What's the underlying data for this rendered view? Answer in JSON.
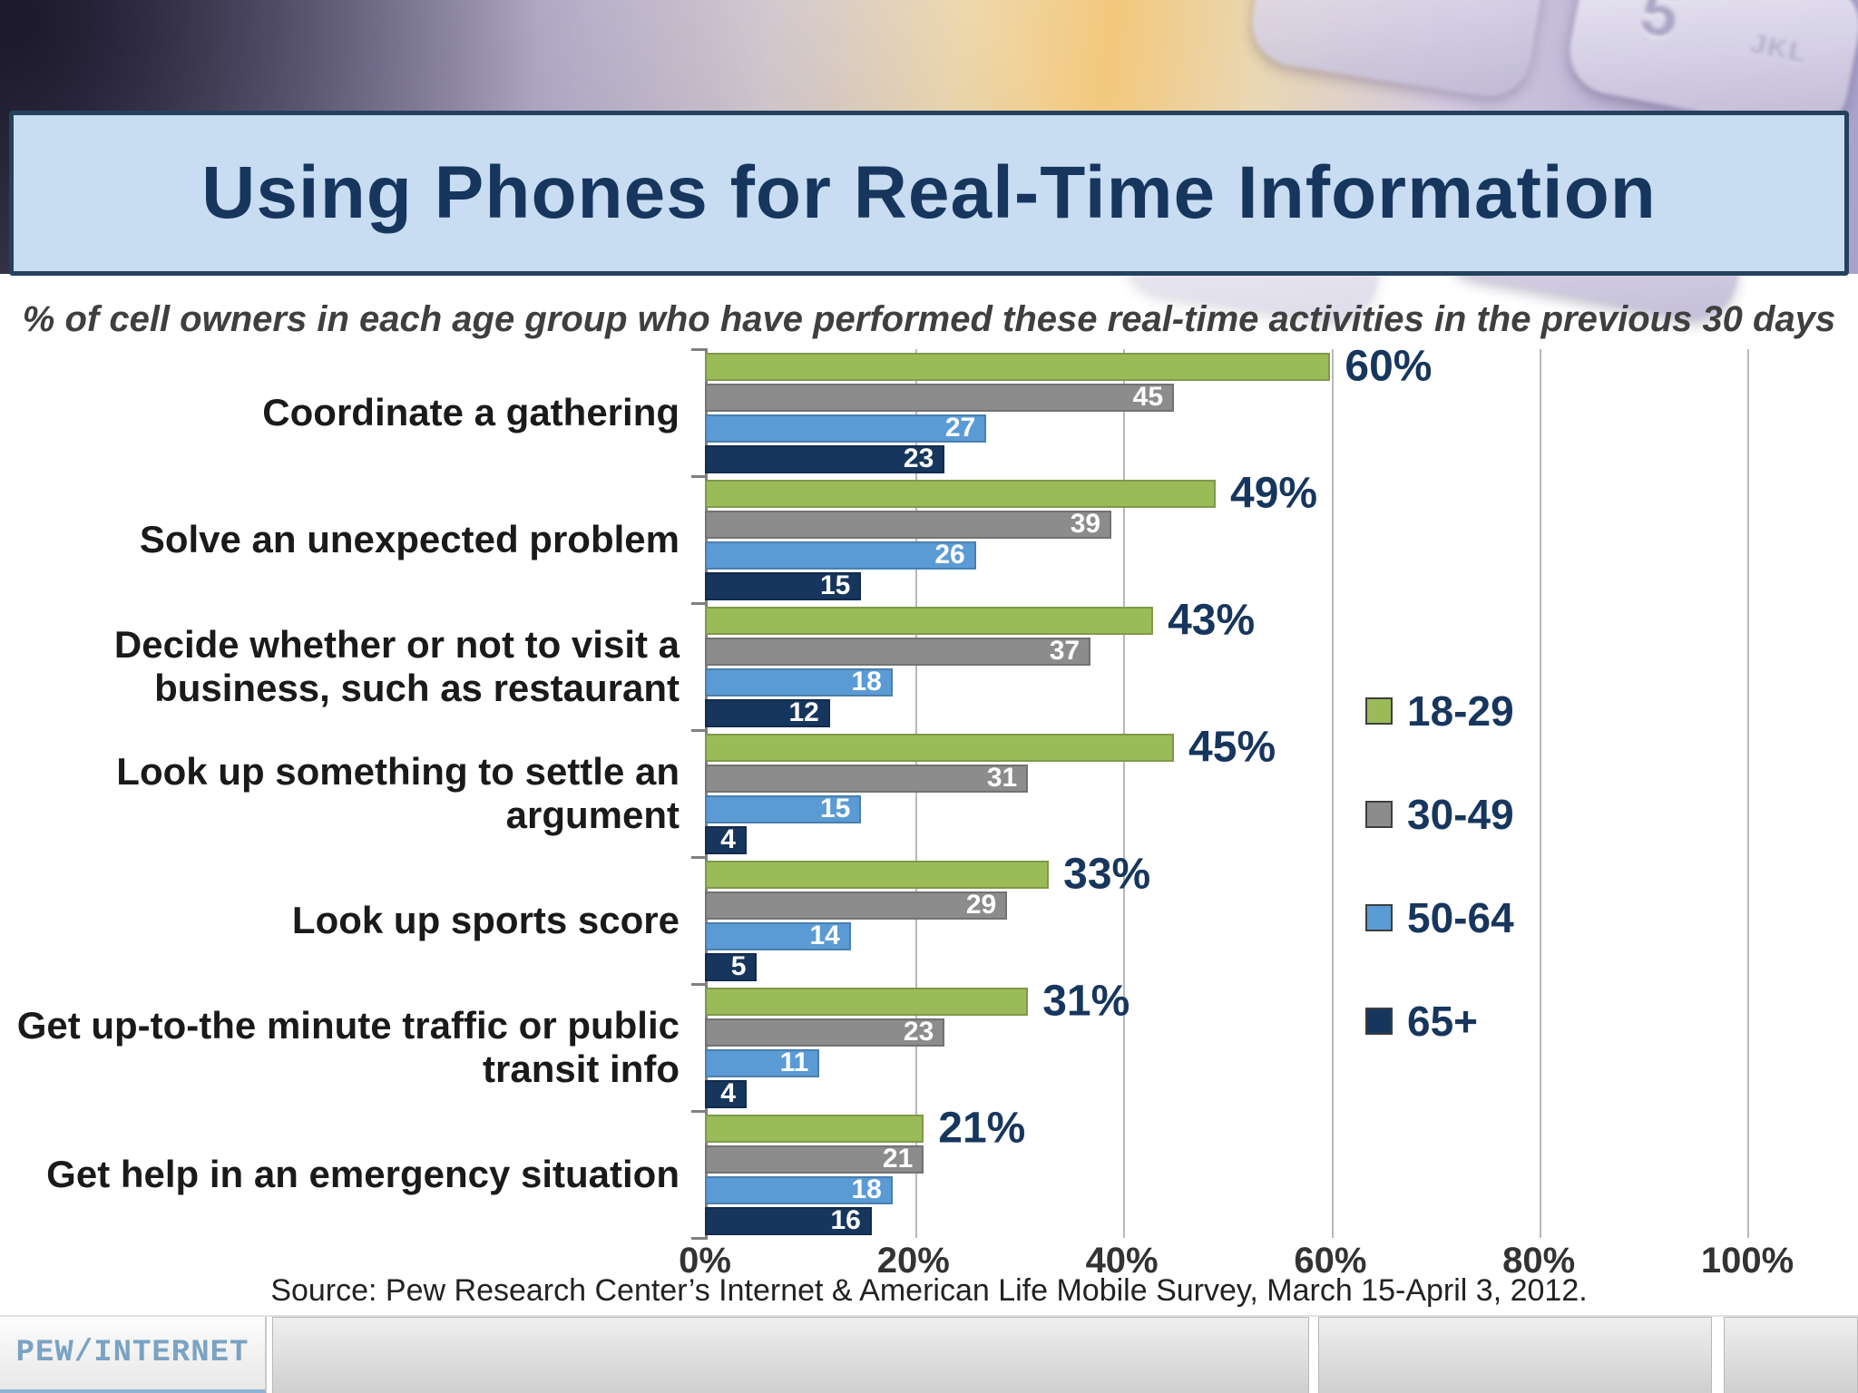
{
  "title": "Using Phones for Real-Time Information",
  "subtitle": "% of cell owners in each age group who have performed these real-time activities in the previous 30 days",
  "source": "Source: Pew Research Center’s Internet & American Life Mobile Survey, March 15-April 3, 2012.",
  "logo": {
    "text": "PEW/INTERNET"
  },
  "background": {
    "key_number": "5",
    "key_letters": "JKL"
  },
  "colors": {
    "title_text": "#17365D",
    "title_bar_bg": "#C8DCF2",
    "title_bar_border": "#24425F",
    "series_green": "#9BBB59",
    "series_gray": "#8C8C8C",
    "series_blue": "#5B9BD5",
    "series_navy": "#17365D"
  },
  "chart_data": {
    "type": "bar",
    "orientation": "horizontal",
    "title": "Using Phones for Real-Time Information",
    "subtitle": "% of cell owners in each age group who have performed these real-time activities in the previous 30 days",
    "categories": [
      "Coordinate a gathering",
      "Solve an unexpected problem",
      "Decide whether or not to visit a business, such as restaurant",
      "Look up something to settle an argument",
      "Look up sports score",
      "Get up-to-the minute traffic or public transit info",
      "Get help in an emergency situation"
    ],
    "series": [
      {
        "name": "18-29",
        "color": "#9BBB59",
        "values": [
          60,
          49,
          43,
          45,
          33,
          31,
          21
        ],
        "label_style": "outside-percent"
      },
      {
        "name": "30-49",
        "color": "#8C8C8C",
        "values": [
          45,
          39,
          37,
          31,
          29,
          23,
          21
        ],
        "label_style": "inside-white"
      },
      {
        "name": "50-64",
        "color": "#5B9BD5",
        "values": [
          27,
          26,
          18,
          15,
          14,
          11,
          18
        ],
        "label_style": "inside-white"
      },
      {
        "name": "65+",
        "color": "#17365D",
        "values": [
          23,
          15,
          12,
          4,
          5,
          4,
          16
        ],
        "label_style": "inside-white"
      }
    ],
    "xlim": [
      0,
      100
    ],
    "x_ticks": [
      "0%",
      "20%",
      "40%",
      "60%",
      "80%",
      "100%"
    ],
    "grid": true,
    "legend_position": "right"
  }
}
